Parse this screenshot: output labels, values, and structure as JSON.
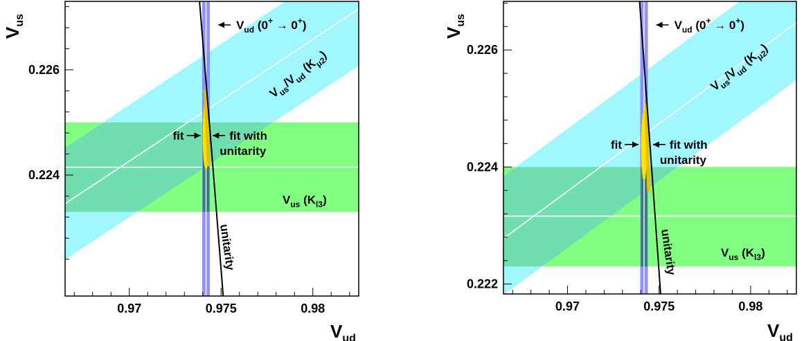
{
  "chart_data": [
    {
      "type": "area",
      "xlim": [
        0.9665,
        0.9825
      ],
      "ylim": [
        0.2217,
        0.2273
      ],
      "xlabel": "V",
      "xlabel_sub": "ud",
      "ylabel": "V",
      "ylabel_sub": "us",
      "xticks": [
        {
          "value": 0.97,
          "label": "0.97"
        },
        {
          "value": 0.975,
          "label": "0.975"
        },
        {
          "value": 0.98,
          "label": "0.98"
        }
      ],
      "yticks": [
        {
          "value": 0.224,
          "label": "0.224"
        },
        {
          "value": 0.226,
          "label": "0.226"
        }
      ],
      "grid": false,
      "series": [
        {
          "name": "Vus (Kl3)",
          "color": "#80ff80",
          "kind": "horizontal_band",
          "center": 0.22415,
          "low": 0.2233,
          "high": 0.225
        },
        {
          "name": "Vus/Vud (Kμ2)",
          "color": "#80f4ff",
          "kind": "ratio_band",
          "center_slope": 0.2312,
          "low_slope": 0.2301,
          "high_slope": 0.2323
        },
        {
          "name": "Vud (0+ → 0+)",
          "color": "#8080ff",
          "kind": "vertical_band",
          "center": 0.97418,
          "low": 0.97397,
          "high": 0.97439
        },
        {
          "name": "fit",
          "color": "#ffe400",
          "kind": "ellipse",
          "cx": 0.97418,
          "cy": 0.22475,
          "rx": 0.00018,
          "ry": 0.00065
        },
        {
          "name": "fit with unitarity",
          "color": "#e8c000",
          "kind": "segment",
          "x": [
            0.97415,
            0.97432
          ],
          "y": [
            0.2256,
            0.2242
          ]
        },
        {
          "name": "unitarity",
          "color": "#000000",
          "kind": "curve",
          "sum_of_squares": 1
        }
      ],
      "annotations": {
        "vud": {
          "main": "V",
          "sub": "ud",
          "paren": "(0",
          "sup1": "+",
          "arrow": "→ 0",
          "sup2": "+",
          "close": ")"
        },
        "ratio": {
          "a": "V",
          "a_sub": "us",
          "slash": "/V",
          "b_sub": "ud",
          "paren": "(K",
          "k_sub": "μ2",
          "close": ")"
        },
        "kl3": {
          "a": "V",
          "a_sub": "us",
          "paren": "(K",
          "k_sub": "l3",
          "close": ")"
        },
        "fit": "fit",
        "fit_unitarity_1": "fit with",
        "fit_unitarity_2": "unitarity",
        "unitarity": "unitarity"
      }
    },
    {
      "type": "area",
      "xlim": [
        0.9665,
        0.9825
      ],
      "ylim": [
        0.22183,
        0.22683
      ],
      "xlabel": "V",
      "xlabel_sub": "ud",
      "ylabel": "V",
      "ylabel_sub": "us",
      "xticks": [
        {
          "value": 0.97,
          "label": "0.97"
        },
        {
          "value": 0.975,
          "label": "0.975"
        },
        {
          "value": 0.98,
          "label": "0.98"
        }
      ],
      "yticks": [
        {
          "value": 0.222,
          "label": "0.222"
        },
        {
          "value": 0.224,
          "label": "0.224"
        },
        {
          "value": 0.226,
          "label": "0.226"
        }
      ],
      "grid": false,
      "series": [
        {
          "name": "Vus (Kl3)",
          "color": "#80ff80",
          "kind": "horizontal_band",
          "center": 0.22316,
          "low": 0.2223,
          "high": 0.224
        },
        {
          "name": "Vus/Vud (Kμ2)",
          "color": "#80f4ff",
          "kind": "ratio_band",
          "center_slope": 0.2305,
          "low_slope": 0.2295,
          "high_slope": 0.2316
        },
        {
          "name": "Vud (0+ → 0+)",
          "color": "#8080ff",
          "kind": "vertical_band",
          "center": 0.97418,
          "low": 0.97397,
          "high": 0.97439
        },
        {
          "name": "fit",
          "color": "#ffe400",
          "kind": "ellipse",
          "cx": 0.97418,
          "cy": 0.22436,
          "rx": 0.00016,
          "ry": 0.0006
        },
        {
          "name": "fit with unitarity",
          "color": "#e8c000",
          "kind": "segment",
          "x": [
            0.97428,
            0.97444
          ],
          "y": [
            0.22505,
            0.2236
          ]
        },
        {
          "name": "unitarity",
          "color": "#000000",
          "kind": "curve",
          "sum_of_squares": 1
        }
      ],
      "annotations": {
        "vud": {
          "main": "V",
          "sub": "ud",
          "paren": "(0",
          "sup1": "+",
          "arrow": "→ 0",
          "sup2": "+",
          "close": ")"
        },
        "ratio": {
          "a": "V",
          "a_sub": "us",
          "slash": "/V",
          "b_sub": "ud",
          "paren": "(K",
          "k_sub": "μ2",
          "close": ")"
        },
        "kl3": {
          "a": "V",
          "a_sub": "us",
          "paren": "(K",
          "k_sub": "l3",
          "close": ")"
        },
        "fit": "fit",
        "fit_unitarity_1": "fit with",
        "fit_unitarity_2": "unitarity",
        "unitarity": "unitarity"
      }
    }
  ]
}
